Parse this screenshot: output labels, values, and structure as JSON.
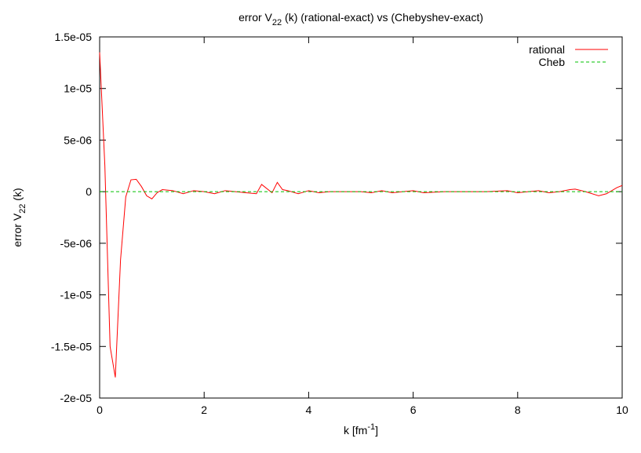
{
  "chart_data": {
    "type": "line",
    "title": [
      "error V",
      "22",
      " (k) (rational-exact) vs (Chebyshev-exact)"
    ],
    "xlabel": [
      "k [fm",
      "-1",
      "]"
    ],
    "ylabel": [
      "error V",
      "22",
      " (k)"
    ],
    "xlim": [
      0,
      10
    ],
    "ylim": [
      -2e-05,
      1.5e-05
    ],
    "xticks": [
      0,
      2,
      4,
      6,
      8,
      10
    ],
    "yticks": [
      {
        "value": -2e-05,
        "label": "-2e-05"
      },
      {
        "value": -1.5e-05,
        "label": "-1.5e-05"
      },
      {
        "value": -1e-05,
        "label": "-1e-05"
      },
      {
        "value": -5e-06,
        "label": "-5e-06"
      },
      0,
      {
        "value": 5e-06,
        "label": "5e-06"
      },
      {
        "value": 1e-05,
        "label": "1e-05"
      },
      {
        "value": 1.5e-05,
        "label": "1.5e-05"
      }
    ],
    "grid": false,
    "legend": "top-right",
    "series": [
      {
        "name": "rational",
        "color": "#ff0000",
        "dashed": false,
        "x": [
          0,
          0.1,
          0.2,
          0.3,
          0.4,
          0.5,
          0.6,
          0.7,
          0.8,
          0.9,
          1.0,
          1.1,
          1.2,
          1.4,
          1.6,
          1.8,
          2.0,
          2.2,
          2.4,
          2.6,
          2.8,
          3.0,
          3.1,
          3.3,
          3.4,
          3.5,
          3.6,
          3.8,
          4.0,
          4.2,
          4.4,
          4.8,
          5.0,
          5.2,
          5.4,
          5.6,
          6.0,
          6.2,
          6.6,
          7.0,
          7.4,
          7.8,
          8.0,
          8.2,
          8.4,
          8.6,
          8.8,
          9.0,
          9.1,
          9.3,
          9.55,
          9.7,
          9.9,
          10
        ],
        "values": [
          1.35e-05,
          2.5e-06,
          -1.5e-05,
          -1.8e-05,
          -6.6e-06,
          -5e-07,
          1.15e-06,
          1.2e-06,
          5e-07,
          -4e-07,
          -7e-07,
          -1e-07,
          2e-07,
          1e-07,
          -2e-07,
          1e-07,
          0,
          -2e-07,
          1e-07,
          0,
          -1e-07,
          -2e-07,
          7e-07,
          -1e-07,
          9e-07,
          2e-07,
          1e-07,
          -2e-07,
          1e-07,
          -1e-07,
          0,
          0,
          0,
          -1e-07,
          1e-07,
          -1e-07,
          1e-07,
          -1e-07,
          0,
          0,
          0,
          1e-07,
          -1e-07,
          0,
          1e-07,
          -1e-07,
          0,
          2e-07,
          2.5e-07,
          0,
          -4e-07,
          -2e-07,
          4e-07,
          6e-07
        ]
      },
      {
        "name": "Cheb",
        "color": "#00c000",
        "dashed": true,
        "x": [
          0,
          10
        ],
        "values": [
          0,
          0
        ]
      }
    ]
  }
}
